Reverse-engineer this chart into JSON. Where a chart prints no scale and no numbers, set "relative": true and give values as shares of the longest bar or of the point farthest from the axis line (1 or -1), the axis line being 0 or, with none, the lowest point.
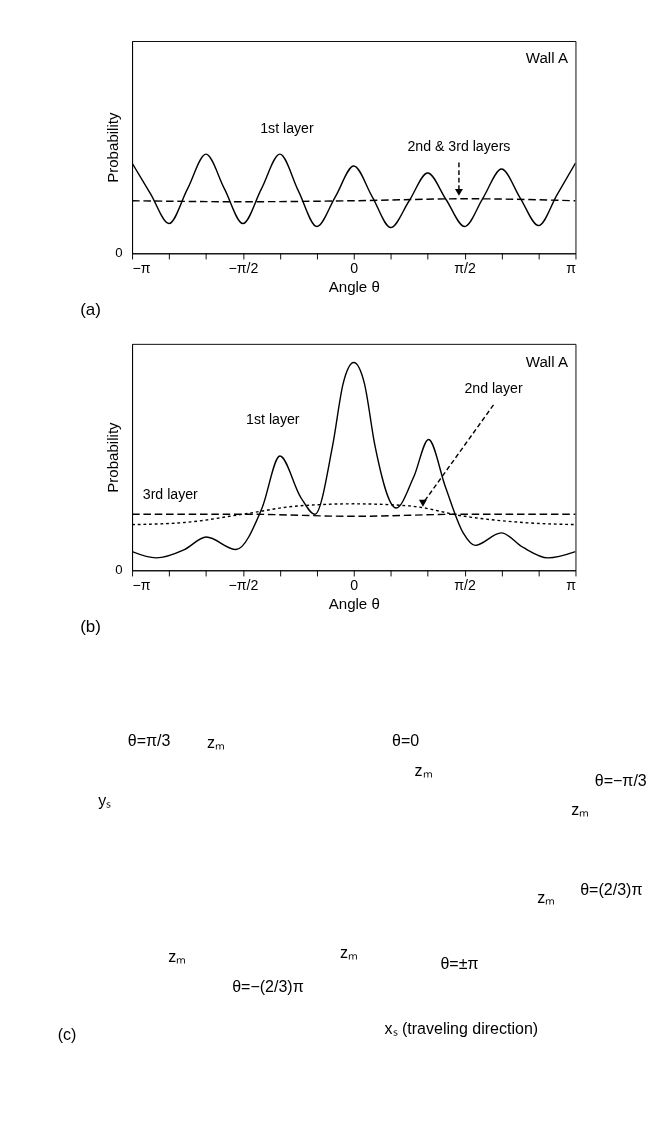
{
  "chart_data": [
    {
      "type": "line",
      "relative": true,
      "xlabel": "Angle θ",
      "ylabel": "Probability",
      "xlim": [
        -3.1416,
        3.1416
      ],
      "xticks": [
        {
          "value": -3.1416,
          "label": "−π"
        },
        {
          "value": -2.618,
          "label": null
        },
        {
          "value": -2.0944,
          "label": null
        },
        {
          "value": -1.5708,
          "label": "−π/2"
        },
        {
          "value": -1.0472,
          "label": null
        },
        {
          "value": -0.5236,
          "label": null
        },
        0,
        {
          "value": 0.5236,
          "label": null
        },
        {
          "value": 1.0472,
          "label": null
        },
        {
          "value": 1.5708,
          "label": "π/2"
        },
        {
          "value": 2.0944,
          "label": null
        },
        {
          "value": 2.618,
          "label": null
        },
        {
          "value": 3.1416,
          "label": "π"
        }
      ],
      "grid": false,
      "series": [
        {
          "color": "#000000",
          "line_style": "solid",
          "x": [
            -3.1416,
            -2.8798,
            -2.618,
            -2.3562,
            -2.0944,
            -1.8326,
            -1.5708,
            -1.309,
            -1.0472,
            -0.7854,
            -0.5236,
            -0.2618,
            0,
            0.2618,
            0.5236,
            0.7854,
            1.0472,
            1.309,
            1.5708,
            1.8326,
            2.0944,
            2.3562,
            2.618,
            2.8798,
            3.1416
          ],
          "values": [
            0.91,
            0.6,
            0.3,
            0.65,
            1.0,
            0.65,
            0.3,
            0.65,
            1.0,
            0.63,
            0.27,
            0.57,
            0.88,
            0.57,
            0.26,
            0.53,
            0.81,
            0.54,
            0.27,
            0.56,
            0.85,
            0.56,
            0.28,
            0.59,
            0.91
          ]
        },
        {
          "color": "#000000",
          "line_style": "dashed",
          "x": [
            -3.1416,
            -1.5708,
            0,
            1.5708,
            3.1416
          ],
          "values": [
            0.53,
            0.52,
            0.53,
            0.55,
            0.53
          ]
        }
      ],
      "annotations": [
        "Wall A",
        "0",
        "(a)",
        {
          "text": "1st layer",
          "x": -1.0472,
          "y": 1.0
        },
        {
          "text": "2nd & 3rd layers",
          "x": 1.49,
          "y": 0.55
        }
      ]
    },
    {
      "type": "line",
      "relative": true,
      "xlabel": "Angle θ",
      "ylabel": "Probability",
      "xlim": [
        -3.1416,
        3.1416
      ],
      "xticks": [
        {
          "value": -3.1416,
          "label": "−π"
        },
        {
          "value": -2.618,
          "label": null
        },
        {
          "value": -2.0944,
          "label": null
        },
        {
          "value": -1.5708,
          "label": "−π/2"
        },
        {
          "value": -1.0472,
          "label": null
        },
        {
          "value": -0.5236,
          "label": null
        },
        0,
        {
          "value": 0.5236,
          "label": null
        },
        {
          "value": 1.0472,
          "label": null
        },
        {
          "value": 1.5708,
          "label": "π/2"
        },
        {
          "value": 2.0944,
          "label": null
        },
        {
          "value": 2.618,
          "label": null
        },
        {
          "value": 3.1416,
          "label": "π"
        }
      ],
      "grid": false,
      "series": [
        {
          "color": "#000000",
          "line_style": "solid",
          "x": [
            -3.1416,
            -2.8,
            -2.4,
            -2.09,
            -1.67,
            -1.3,
            -1.047,
            -0.75,
            -0.55,
            -0.3,
            -0.15,
            0,
            0.15,
            0.3,
            0.6,
            0.85,
            1.06,
            1.3,
            1.55,
            1.72,
            2.09,
            2.4,
            2.75,
            3.1416
          ],
          "values": [
            0.09,
            0.06,
            0.1,
            0.16,
            0.1,
            0.3,
            0.55,
            0.35,
            0.27,
            0.6,
            0.9,
            1.0,
            0.9,
            0.6,
            0.3,
            0.45,
            0.63,
            0.4,
            0.18,
            0.12,
            0.18,
            0.11,
            0.06,
            0.09
          ]
        },
        {
          "color": "#000000",
          "line_style": "dotted",
          "x": [
            -3.1416,
            -2.4,
            -1.5708,
            -0.7854,
            0,
            0.7854,
            1.5708,
            2.4,
            3.1416
          ],
          "values": [
            0.22,
            0.23,
            0.27,
            0.31,
            0.32,
            0.31,
            0.26,
            0.23,
            0.22
          ]
        },
        {
          "color": "#000000",
          "line_style": "dashed",
          "x": [
            -3.1416,
            -1.5708,
            0,
            1.5708,
            3.1416
          ],
          "values": [
            0.27,
            0.27,
            0.26,
            0.27,
            0.27
          ]
        }
      ],
      "annotations": [
        "Wall A",
        "0",
        "(b)",
        {
          "text": "1st layer",
          "x": -1.0472,
          "y": 0.55
        },
        {
          "text": "2nd layer",
          "x": 0.98,
          "y": 0.29
        },
        {
          "text": "3rd layer",
          "x": -2.6,
          "y": 0.27
        }
      ]
    },
    {
      "type": "other",
      "annotations": [
        "θ=π/3",
        "θ=0",
        "θ=−π/3",
        "θ=−(2/3)π",
        "θ=±π",
        "θ=(2/3)π",
        "zₘ",
        "zₘ",
        "zₘ",
        "zₘ",
        "zₘ",
        "zₘ",
        "yₛ",
        "xₛ (traveling direction)",
        "(c)"
      ]
    }
  ]
}
